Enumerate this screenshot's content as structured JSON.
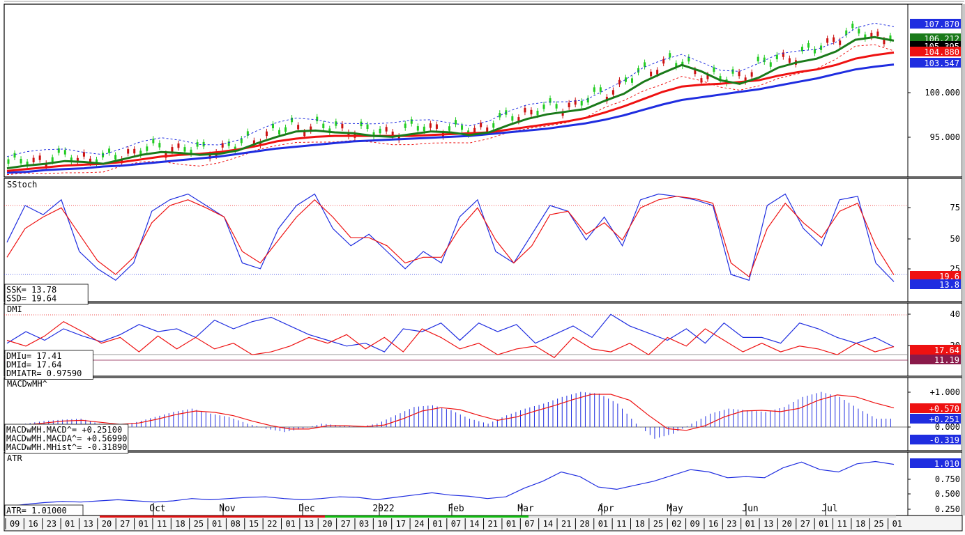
{
  "colors": {
    "blue": "#1f2de0",
    "red": "#ee1111",
    "green": "#1a7a1a",
    "black": "#000000",
    "gray_frame": "#c8c8c8",
    "up_candle": "#22cc22",
    "down_candle": "#cc1111"
  },
  "price_panel": {
    "axis_ticks": [
      "100.000",
      "95.000"
    ],
    "labels": [
      {
        "value": "107.870",
        "bg": "#1f2de0",
        "fg": "#ffffff"
      },
      {
        "value": "106.212",
        "bg": "#1a7a1a",
        "fg": "#ffffff"
      },
      {
        "value": "105.395",
        "bg": "#000000",
        "fg": "#ffffff"
      },
      {
        "value": "104.880",
        "bg": "#ee1111",
        "fg": "#ffffff"
      },
      {
        "value": "103.547",
        "bg": "#1f2de0",
        "fg": "#ffffff"
      }
    ]
  },
  "sstoch_panel": {
    "title": "SStoch",
    "axis_ticks": [
      "75",
      "50",
      "25"
    ],
    "readouts": [
      "SSK=       13.78",
      "SSD=       19.64"
    ],
    "labels": [
      {
        "value": "19.6",
        "bg": "#ee1111",
        "fg": "#ffffff"
      },
      {
        "value": "13.8",
        "bg": "#1f2de0",
        "fg": "#ffffff"
      }
    ]
  },
  "dmi_panel": {
    "title": "DMI",
    "axis_ticks": [
      "40",
      "20"
    ],
    "readouts": [
      "DMIu=       17.41",
      "DMId=       17.64",
      "DMIATR= 0.97590"
    ],
    "labels": [
      {
        "value": "17.64",
        "bg": "#ee1111",
        "fg": "#ffffff"
      },
      {
        "value": "11.19",
        "bg": "#8a1a4a",
        "fg": "#ffffff"
      }
    ]
  },
  "macd_panel": {
    "title": "MACDwMH^",
    "axis_ticks": [
      "+1.000",
      "0.000"
    ],
    "readouts": [
      "MACDwMH.MACD^= +0.25100",
      "MACDwMH.MACDA^= +0.56990",
      "MACDwMH.MHist^= -0.31890"
    ],
    "labels": [
      {
        "value": "+0.570",
        "bg": "#ee1111",
        "fg": "#ffffff"
      },
      {
        "value": "+0.251",
        "bg": "#1f2de0",
        "fg": "#ffffff"
      },
      {
        "value": "-0.319",
        "bg": "#1f2de0",
        "fg": "#ffffff"
      }
    ]
  },
  "atr_panel": {
    "title": "ATR",
    "axis_ticks": [
      "0.750",
      "0.500",
      "0.250"
    ],
    "readouts": [
      "ATR=    1.01000"
    ],
    "labels": [
      {
        "value": "1.010",
        "bg": "#1f2de0",
        "fg": "#ffffff"
      }
    ]
  },
  "time_axis": {
    "month_labels": [
      "Oct",
      "Nov",
      "Dec",
      "2022",
      "Feb",
      "Mar",
      "Apr",
      "May",
      "Jun",
      "Jul"
    ],
    "day_labels": [
      "09",
      "16",
      "23",
      "01",
      "13",
      "20",
      "27",
      "01",
      "11",
      "18",
      "25",
      "01",
      "08",
      "15",
      "22",
      "01",
      "13",
      "20",
      "27",
      "03",
      "10",
      "17",
      "24",
      "01",
      "07",
      "14",
      "21",
      "01",
      "07",
      "14",
      "21",
      "28",
      "01",
      "11",
      "18",
      "25",
      "02",
      "09",
      "16",
      "23",
      "01",
      "13",
      "20",
      "27",
      "01",
      "11",
      "18",
      "25",
      "01"
    ]
  },
  "chart_data": [
    {
      "type": "line",
      "title": "",
      "note": "Price panel: OHLC candles with three moving averages (green, red, blue) and dashed trailing stops.",
      "ylim": [
        91.5,
        109.8
      ],
      "series": [
        {
          "name": "",
          "color": "#1a7a1a",
          "values": [
            92.0,
            92.3,
            92.5,
            92.8,
            92.7,
            92.5,
            93.0,
            93.5,
            93.8,
            93.7,
            93.5,
            93.6,
            94.0,
            94.8,
            95.5,
            96.1,
            96.2,
            96.0,
            95.9,
            95.6,
            95.5,
            95.8,
            96.1,
            96.0,
            95.7,
            96.0,
            96.8,
            97.5,
            98.0,
            98.3,
            98.6,
            99.5,
            100.3,
            101.6,
            102.6,
            103.5,
            102.8,
            101.8,
            101.4,
            102.1,
            103.2,
            103.8,
            104.2,
            105.0,
            106.3,
            106.6,
            106.2
          ]
        },
        {
          "name": "",
          "color": "#ee1111",
          "values": [
            91.7,
            91.9,
            92.1,
            92.3,
            92.4,
            92.5,
            92.7,
            93.0,
            93.3,
            93.5,
            93.6,
            93.8,
            94.1,
            94.5,
            95.0,
            95.3,
            95.5,
            95.6,
            95.6,
            95.6,
            95.6,
            95.6,
            95.7,
            95.8,
            95.9,
            96.0,
            96.3,
            96.6,
            96.9,
            97.2,
            97.6,
            98.2,
            98.9,
            99.7,
            100.5,
            101.1,
            101.3,
            101.4,
            101.6,
            101.8,
            102.3,
            102.7,
            103.0,
            103.5,
            104.2,
            104.6,
            104.88
          ]
        },
        {
          "name": "",
          "color": "#1f2de0",
          "values": [
            91.5,
            91.6,
            91.8,
            91.9,
            92.0,
            92.2,
            92.3,
            92.5,
            92.7,
            92.9,
            93.1,
            93.3,
            93.6,
            93.9,
            94.2,
            94.4,
            94.6,
            94.8,
            95.0,
            95.1,
            95.2,
            95.3,
            95.4,
            95.5,
            95.6,
            95.8,
            96.0,
            96.2,
            96.4,
            96.7,
            97.0,
            97.4,
            97.9,
            98.5,
            99.1,
            99.6,
            99.9,
            100.2,
            100.5,
            100.8,
            101.2,
            101.6,
            102.0,
            102.5,
            103.0,
            103.3,
            103.55
          ]
        }
      ]
    },
    {
      "type": "line",
      "title": "SStoch",
      "ylim": [
        0,
        100
      ],
      "series": [
        {
          "name": "SSK",
          "color": "#1f2de0",
          "values": [
            48,
            80,
            72,
            85,
            40,
            25,
            15,
            30,
            75,
            85,
            90,
            80,
            70,
            30,
            25,
            60,
            80,
            90,
            60,
            45,
            55,
            40,
            25,
            40,
            30,
            70,
            85,
            40,
            30,
            55,
            80,
            75,
            50,
            70,
            45,
            85,
            90,
            88,
            85,
            80,
            20,
            15,
            80,
            90,
            60,
            45,
            85,
            88,
            30,
            13.78
          ]
        },
        {
          "name": "SSD",
          "color": "#ee1111",
          "values": [
            35,
            60,
            70,
            78,
            55,
            32,
            20,
            35,
            65,
            80,
            85,
            78,
            70,
            40,
            30,
            50,
            70,
            85,
            70,
            52,
            52,
            45,
            30,
            35,
            35,
            60,
            78,
            50,
            30,
            45,
            72,
            75,
            55,
            65,
            50,
            78,
            85,
            88,
            86,
            82,
            30,
            18,
            60,
            82,
            65,
            52,
            75,
            82,
            45,
            19.64
          ]
        }
      ]
    },
    {
      "type": "line",
      "title": "DMI",
      "ylim": [
        0,
        45
      ],
      "series": [
        {
          "name": "DMIu",
          "color": "#1f2de0",
          "values": [
            20,
            28,
            22,
            30,
            25,
            21,
            26,
            33,
            28,
            30,
            24,
            36,
            30,
            35,
            38,
            32,
            26,
            22,
            18,
            20,
            14,
            30,
            28,
            34,
            22,
            34,
            28,
            33,
            20,
            26,
            32,
            24,
            40,
            32,
            27,
            22,
            30,
            20,
            34,
            24,
            24,
            20,
            34,
            30,
            24,
            20,
            24,
            17.41
          ]
        },
        {
          "name": "DMId",
          "color": "#ee1111",
          "values": [
            22,
            18,
            25,
            35,
            28,
            20,
            24,
            14,
            25,
            16,
            24,
            16,
            20,
            12,
            14,
            18,
            24,
            20,
            26,
            16,
            24,
            14,
            30,
            24,
            16,
            20,
            12,
            16,
            18,
            10,
            24,
            16,
            14,
            20,
            12,
            24,
            18,
            30,
            22,
            14,
            20,
            14,
            18,
            16,
            12,
            20,
            14,
            17.64
          ]
        }
      ],
      "reference_levels": [
        40,
        17.64,
        11.19
      ]
    },
    {
      "type": "bar",
      "title": "MACDwMH^",
      "ylim": [
        -0.6,
        1.25
      ],
      "series": [
        {
          "name": "MACD",
          "color": "#1f2de0",
          "values": [
            0.05,
            0.1,
            0.18,
            0.22,
            0.25,
            0.1,
            0.05,
            0.15,
            0.3,
            0.45,
            0.55,
            0.4,
            0.3,
            0.1,
            -0.05,
            -0.15,
            -0.05,
            0.1,
            0.05,
            0.0,
            0.1,
            0.35,
            0.6,
            0.65,
            0.5,
            0.25,
            0.1,
            0.35,
            0.55,
            0.7,
            0.9,
            1.05,
            1.0,
            0.7,
            0.1,
            -0.35,
            -0.2,
            0.1,
            0.4,
            0.55,
            0.5,
            0.45,
            0.6,
            0.9,
            1.05,
            0.9,
            0.55,
            0.25
          ]
        },
        {
          "name": "MACDA",
          "color": "#ee1111",
          "values": [
            0.02,
            0.06,
            0.12,
            0.18,
            0.2,
            0.14,
            0.08,
            0.12,
            0.24,
            0.38,
            0.48,
            0.44,
            0.34,
            0.18,
            0.04,
            -0.06,
            -0.06,
            0.04,
            0.04,
            0.01,
            0.06,
            0.25,
            0.48,
            0.58,
            0.52,
            0.35,
            0.2,
            0.3,
            0.48,
            0.64,
            0.82,
            0.98,
            0.98,
            0.8,
            0.35,
            -0.05,
            -0.1,
            0.04,
            0.3,
            0.48,
            0.5,
            0.46,
            0.56,
            0.8,
            0.96,
            0.9,
            0.72,
            0.57
          ]
        }
      ]
    },
    {
      "type": "line",
      "title": "ATR",
      "ylim": [
        0.2,
        1.15
      ],
      "series": [
        {
          "name": "ATR",
          "color": "#1f2de0",
          "values": [
            0.28,
            0.32,
            0.35,
            0.37,
            0.36,
            0.38,
            0.4,
            0.38,
            0.36,
            0.38,
            0.42,
            0.4,
            0.42,
            0.44,
            0.45,
            0.42,
            0.4,
            0.42,
            0.45,
            0.44,
            0.4,
            0.44,
            0.48,
            0.52,
            0.48,
            0.46,
            0.42,
            0.45,
            0.6,
            0.72,
            0.88,
            0.8,
            0.62,
            0.58,
            0.65,
            0.72,
            0.82,
            0.92,
            0.88,
            0.78,
            0.8,
            0.78,
            0.95,
            1.05,
            0.92,
            0.88,
            1.02,
            1.06,
            1.01
          ]
        }
      ]
    }
  ]
}
